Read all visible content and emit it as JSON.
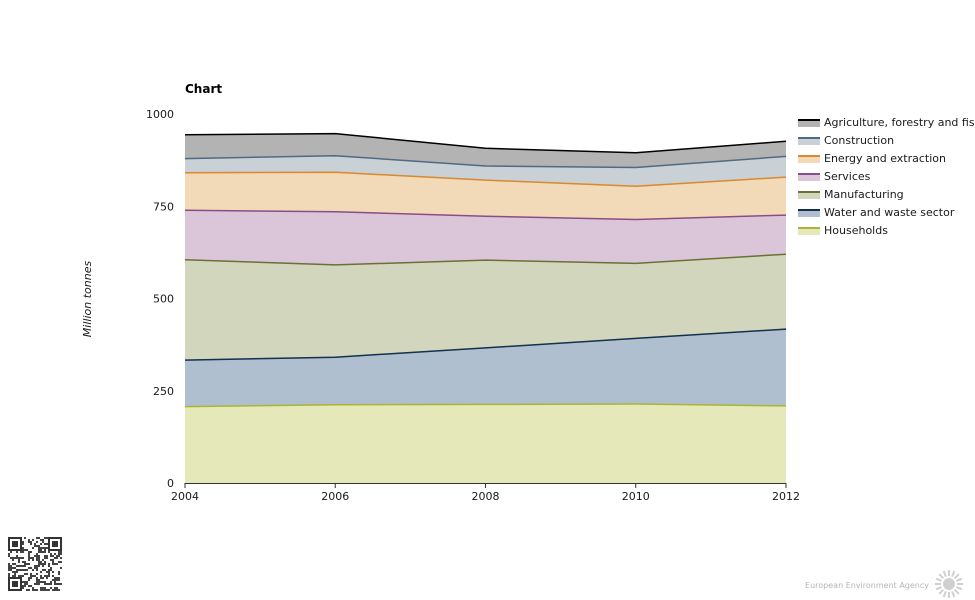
{
  "chart_data": {
    "type": "area",
    "stacked": true,
    "title": "Chart",
    "xlabel": "",
    "ylabel": "Million tonnes",
    "x": [
      2004,
      2006,
      2008,
      2010,
      2012
    ],
    "xticks": [
      "2004",
      "2006",
      "2008",
      "2010",
      "2012"
    ],
    "yticks": [
      "0",
      "250",
      "500",
      "750",
      "1000"
    ],
    "ylim": [
      0,
      1000
    ],
    "grid": false,
    "legend_position": "right",
    "series": [
      {
        "name": "Households",
        "values": [
          207,
          212,
          213,
          214,
          209
        ],
        "fill": "#e5e8b8",
        "line": "#aab535"
      },
      {
        "name": "Water and waste sector",
        "values": [
          126,
          129,
          153,
          178,
          208
        ],
        "fill": "#b0bfcf",
        "line": "#14304f"
      },
      {
        "name": "Manufacturing",
        "values": [
          272,
          250,
          238,
          203,
          203
        ],
        "fill": "#d1d6bc",
        "line": "#6b7035"
      },
      {
        "name": "Services",
        "values": [
          134,
          144,
          119,
          119,
          106
        ],
        "fill": "#dbc6d9",
        "line": "#8a4d86"
      },
      {
        "name": "Energy and extraction",
        "values": [
          102,
          107,
          98,
          90,
          103
        ],
        "fill": "#f2d9b8",
        "line": "#d9892f"
      },
      {
        "name": "Construction",
        "values": [
          38,
          45,
          38,
          51,
          56
        ],
        "fill": "#c9d0d6",
        "line": "#4f6a82"
      },
      {
        "name": "Agriculture, forestry and fishing",
        "values": [
          65,
          60,
          48,
          40,
          41
        ],
        "fill": "#b3b3b3",
        "line": "#000000"
      }
    ]
  },
  "footer": {
    "agency": "European Environment Agency"
  }
}
